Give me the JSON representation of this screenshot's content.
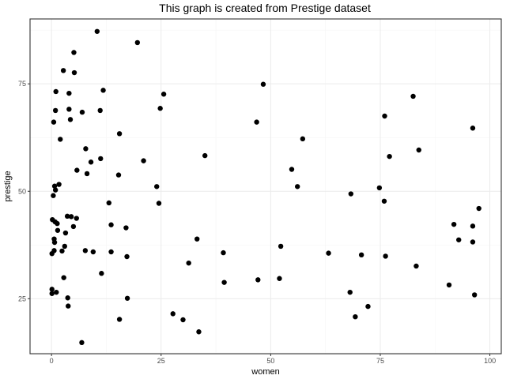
{
  "chart_data": {
    "type": "scatter",
    "title": "This graph is created from Prestige dataset",
    "xlabel": "women",
    "ylabel": "prestige",
    "xlim": [
      -4.9,
      102.6
    ],
    "ylim": [
      12.2,
      90.1
    ],
    "x_ticks": [
      0,
      25,
      50,
      75,
      100
    ],
    "y_ticks": [
      25,
      50,
      75
    ],
    "grid": true,
    "points": [
      {
        "x": 0.4,
        "y": 49.0
      },
      {
        "x": 0.7,
        "y": 51.2
      },
      {
        "x": 0.9,
        "y": 50.3
      },
      {
        "x": 1.7,
        "y": 51.6
      },
      {
        "x": 0.5,
        "y": 66.1
      },
      {
        "x": 0.9,
        "y": 68.8
      },
      {
        "x": 1.0,
        "y": 73.2
      },
      {
        "x": 2.0,
        "y": 62.1
      },
      {
        "x": 0.2,
        "y": 43.4
      },
      {
        "x": 0.8,
        "y": 42.9
      },
      {
        "x": 1.3,
        "y": 42.5
      },
      {
        "x": 1.4,
        "y": 40.9
      },
      {
        "x": 0.6,
        "y": 38.9
      },
      {
        "x": 0.7,
        "y": 38.1
      },
      {
        "x": 0.6,
        "y": 36.2
      },
      {
        "x": 0.1,
        "y": 35.5
      },
      {
        "x": 0.1,
        "y": 27.2
      },
      {
        "x": 0.1,
        "y": 26.2
      },
      {
        "x": 1.1,
        "y": 26.5
      },
      {
        "x": 2.4,
        "y": 36.1
      },
      {
        "x": 3.0,
        "y": 37.2
      },
      {
        "x": 3.2,
        "y": 40.3
      },
      {
        "x": 3.6,
        "y": 44.2
      },
      {
        "x": 4.5,
        "y": 44.1
      },
      {
        "x": 5.0,
        "y": 41.8
      },
      {
        "x": 5.7,
        "y": 43.7
      },
      {
        "x": 2.8,
        "y": 29.9
      },
      {
        "x": 3.7,
        "y": 25.2
      },
      {
        "x": 3.8,
        "y": 23.3
      },
      {
        "x": 6.9,
        "y": 14.8
      },
      {
        "x": 2.7,
        "y": 78.1
      },
      {
        "x": 4.0,
        "y": 72.8
      },
      {
        "x": 4.0,
        "y": 69.1
      },
      {
        "x": 4.3,
        "y": 66.7
      },
      {
        "x": 5.1,
        "y": 82.3
      },
      {
        "x": 5.2,
        "y": 77.6
      },
      {
        "x": 5.8,
        "y": 54.9
      },
      {
        "x": 7.0,
        "y": 68.4
      },
      {
        "x": 7.8,
        "y": 59.9
      },
      {
        "x": 8.1,
        "y": 54.1
      },
      {
        "x": 9.0,
        "y": 56.8
      },
      {
        "x": 7.7,
        "y": 36.2
      },
      {
        "x": 9.5,
        "y": 35.9
      },
      {
        "x": 10.4,
        "y": 87.2
      },
      {
        "x": 11.1,
        "y": 68.8
      },
      {
        "x": 11.8,
        "y": 73.5
      },
      {
        "x": 11.2,
        "y": 57.6
      },
      {
        "x": 11.4,
        "y": 30.9
      },
      {
        "x": 13.1,
        "y": 47.3
      },
      {
        "x": 13.6,
        "y": 42.2
      },
      {
        "x": 13.6,
        "y": 35.9
      },
      {
        "x": 15.5,
        "y": 63.4
      },
      {
        "x": 15.3,
        "y": 53.8
      },
      {
        "x": 15.5,
        "y": 20.2
      },
      {
        "x": 17.0,
        "y": 41.5
      },
      {
        "x": 17.2,
        "y": 34.8
      },
      {
        "x": 17.3,
        "y": 25.1
      },
      {
        "x": 19.6,
        "y": 84.6
      },
      {
        "x": 21.0,
        "y": 57.1
      },
      {
        "x": 24.0,
        "y": 51.1
      },
      {
        "x": 24.5,
        "y": 47.2
      },
      {
        "x": 24.8,
        "y": 69.3
      },
      {
        "x": 25.6,
        "y": 72.6
      },
      {
        "x": 27.7,
        "y": 21.5
      },
      {
        "x": 30.0,
        "y": 20.1
      },
      {
        "x": 31.3,
        "y": 33.3
      },
      {
        "x": 33.2,
        "y": 38.9
      },
      {
        "x": 33.6,
        "y": 17.3
      },
      {
        "x": 35.0,
        "y": 58.3
      },
      {
        "x": 39.2,
        "y": 35.7
      },
      {
        "x": 39.4,
        "y": 28.8
      },
      {
        "x": 46.8,
        "y": 66.1
      },
      {
        "x": 47.1,
        "y": 29.4
      },
      {
        "x": 48.3,
        "y": 74.9
      },
      {
        "x": 52.0,
        "y": 29.7
      },
      {
        "x": 52.3,
        "y": 37.2
      },
      {
        "x": 54.8,
        "y": 55.1
      },
      {
        "x": 56.1,
        "y": 51.1
      },
      {
        "x": 57.3,
        "y": 62.2
      },
      {
        "x": 63.2,
        "y": 35.6
      },
      {
        "x": 68.1,
        "y": 26.5
      },
      {
        "x": 68.3,
        "y": 49.4
      },
      {
        "x": 69.3,
        "y": 20.8
      },
      {
        "x": 70.7,
        "y": 35.2
      },
      {
        "x": 72.2,
        "y": 23.2
      },
      {
        "x": 74.8,
        "y": 50.8
      },
      {
        "x": 75.9,
        "y": 47.7
      },
      {
        "x": 76.0,
        "y": 67.5
      },
      {
        "x": 76.2,
        "y": 34.9
      },
      {
        "x": 77.1,
        "y": 58.1
      },
      {
        "x": 82.5,
        "y": 72.1
      },
      {
        "x": 83.2,
        "y": 32.6
      },
      {
        "x": 83.8,
        "y": 59.6
      },
      {
        "x": 90.7,
        "y": 28.2
      },
      {
        "x": 91.8,
        "y": 42.3
      },
      {
        "x": 92.9,
        "y": 38.7
      },
      {
        "x": 96.1,
        "y": 64.7
      },
      {
        "x": 96.1,
        "y": 41.9
      },
      {
        "x": 96.1,
        "y": 38.2
      },
      {
        "x": 96.5,
        "y": 25.9
      },
      {
        "x": 97.5,
        "y": 46.0
      }
    ]
  }
}
